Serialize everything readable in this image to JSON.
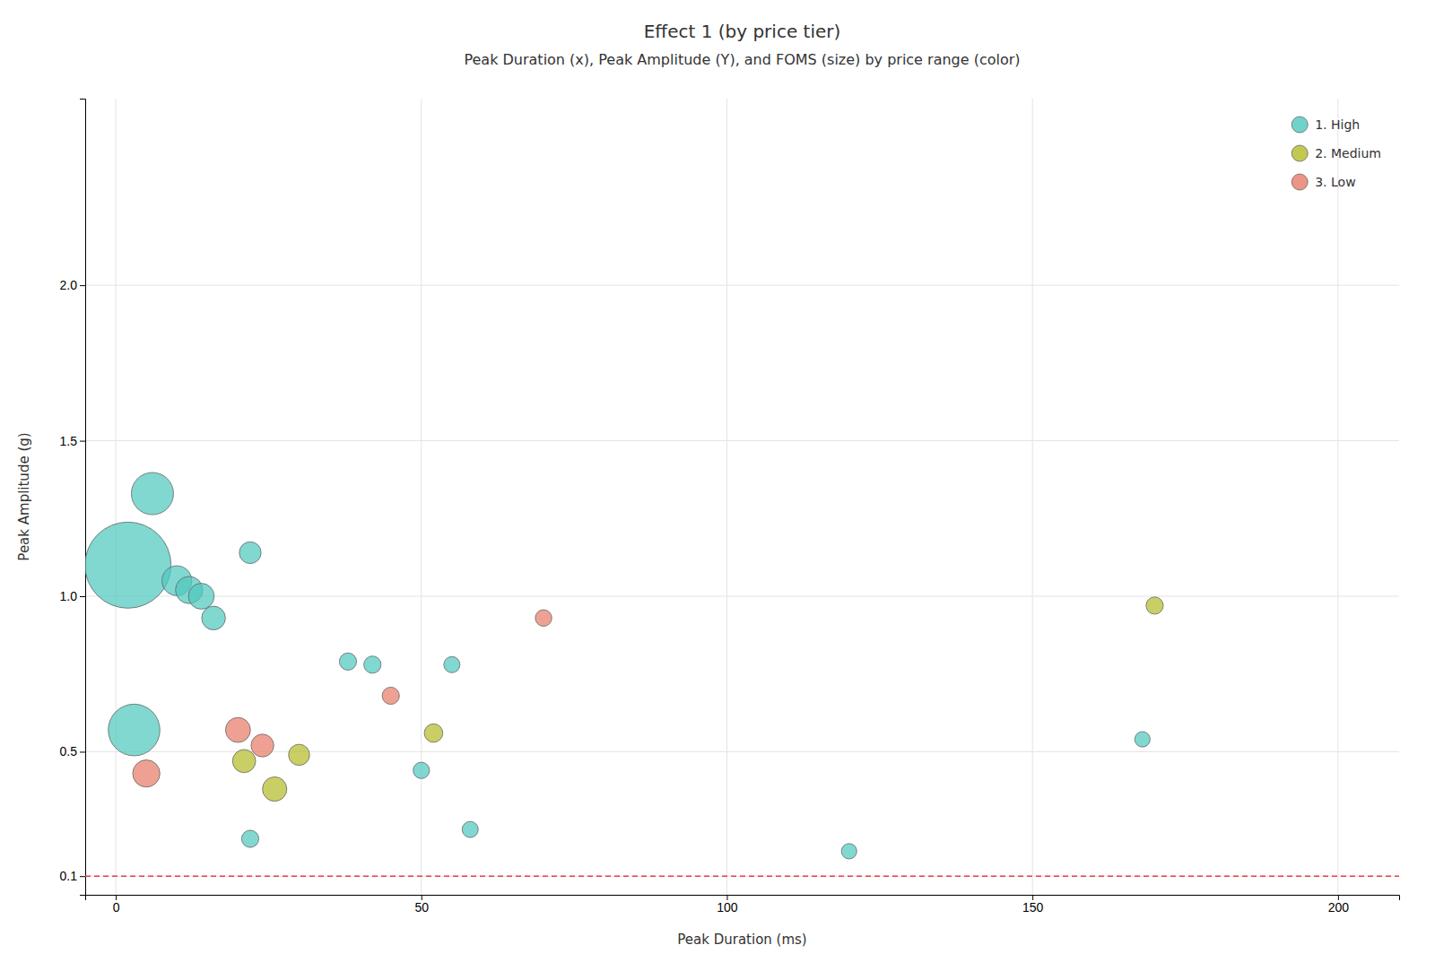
{
  "chart_data": {
    "type": "scatter",
    "title": "Effect 1 (by price tier)",
    "subtitle": "Peak Duration (x), Peak Amplitude (Y), and FOMS (size) by price range (color)",
    "x_label": "Peak Duration (ms)",
    "y_label": "Peak Amplitude (g)",
    "xlim": [
      -5,
      210
    ],
    "ylim": [
      0.04,
      2.6
    ],
    "xticks": [
      0,
      50,
      100,
      150,
      200
    ],
    "yticks": [
      0.1,
      0.5,
      {
        "value": 1.0,
        "label": "1.0"
      },
      1.5,
      {
        "value": 2.0,
        "label": "2.0"
      }
    ],
    "grid": true,
    "legend": "upper right",
    "reference_line": {
      "value": 0.1,
      "color": "#e84040",
      "line_style": "dashed"
    },
    "series": [
      {
        "name": "1. High",
        "color": "#4fc9bf",
        "x": [
          2,
          6,
          10,
          12,
          14,
          16,
          22,
          3,
          22,
          38,
          42,
          50,
          58,
          55,
          120,
          168
        ],
        "values": [
          1.1,
          1.33,
          1.05,
          1.02,
          1.0,
          0.93,
          1.14,
          0.57,
          0.22,
          0.79,
          0.78,
          0.44,
          0.25,
          0.78,
          0.18,
          0.54
        ],
        "sizes": [
          5000,
          1200,
          600,
          500,
          450,
          380,
          320,
          1800,
          200,
          200,
          200,
          180,
          175,
          175,
          160,
          160
        ]
      },
      {
        "name": "2. Medium",
        "color": "#b5bc2a",
        "x": [
          21,
          26,
          30,
          52,
          170
        ],
        "values": [
          0.47,
          0.38,
          0.49,
          0.56,
          0.97
        ],
        "sizes": [
          360,
          400,
          300,
          230,
          200
        ]
      },
      {
        "name": "3. Low",
        "color": "#e87d6a",
        "x": [
          5,
          20,
          24,
          45,
          70
        ],
        "values": [
          0.43,
          0.57,
          0.52,
          0.68,
          0.93
        ],
        "sizes": [
          500,
          420,
          350,
          200,
          185
        ]
      }
    ]
  }
}
